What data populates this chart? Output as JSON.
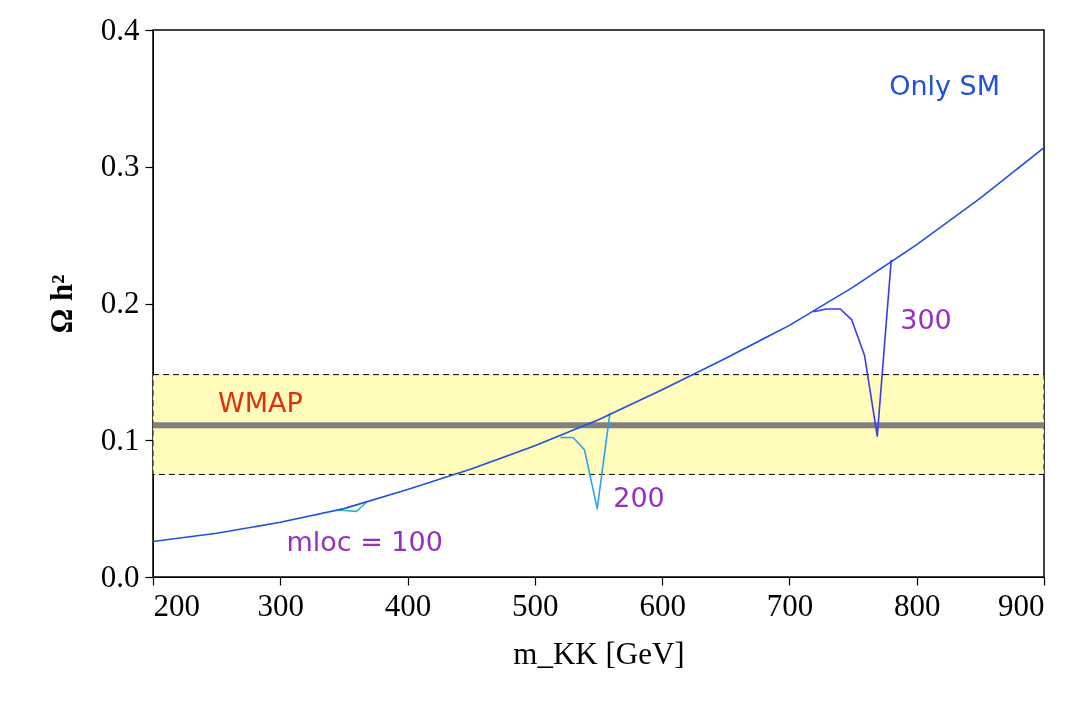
{
  "chart_data": {
    "type": "line",
    "xlabel": "m_KK [GeV]",
    "ylabel": "Ω h²",
    "xlim": [
      200,
      900
    ],
    "xticks": [
      200,
      300,
      400,
      500,
      600,
      700,
      800,
      900
    ],
    "ylim": [
      0,
      0.4
    ],
    "yticks": [
      {
        "value": 0,
        "label": "0.0"
      },
      {
        "value": 0.1,
        "label": "0.1"
      },
      {
        "value": 0.2,
        "label": "0.2"
      },
      {
        "value": 0.3,
        "label": "0.3"
      },
      {
        "value": 0.4,
        "label": "0.4"
      }
    ],
    "grid": false,
    "marker": "none",
    "line_style": "solid",
    "series": [
      {
        "name": "mloc = 100",
        "color": "#2ac0a0",
        "x": [
          345,
          360,
          368
        ],
        "values": [
          0.049,
          0.048,
          0.055
        ]
      },
      {
        "name": "200",
        "color": "#2fa0f0",
        "x": [
          520,
          530,
          539,
          549,
          559
        ],
        "values": [
          0.102,
          0.102,
          0.093,
          0.05,
          0.12
        ]
      },
      {
        "name": "300",
        "color": "#3a3af0",
        "x": [
          719,
          729,
          740,
          749,
          759,
          769,
          780
        ],
        "values": [
          0.194,
          0.196,
          0.196,
          0.188,
          0.162,
          0.103,
          0.232
        ]
      },
      {
        "name": "Only SM",
        "color": "#1f50e0",
        "x": [
          200,
          250,
          300,
          350,
          400,
          450,
          500,
          550,
          600,
          650,
          700,
          750,
          800,
          850,
          900
        ],
        "values": [
          0.026,
          0.032,
          0.04,
          0.05,
          0.064,
          0.079,
          0.096,
          0.115,
          0.137,
          0.16,
          0.184,
          0.212,
          0.243,
          0.277,
          0.314
        ]
      }
    ],
    "bands": [
      {
        "axis": "y",
        "from": 0.075,
        "to": 0.148,
        "color": "#fffbbb",
        "label": "WMAP"
      }
    ],
    "ref_lines": [
      {
        "axis": "y",
        "value": 0.111,
        "color": "#808080"
      }
    ]
  }
}
